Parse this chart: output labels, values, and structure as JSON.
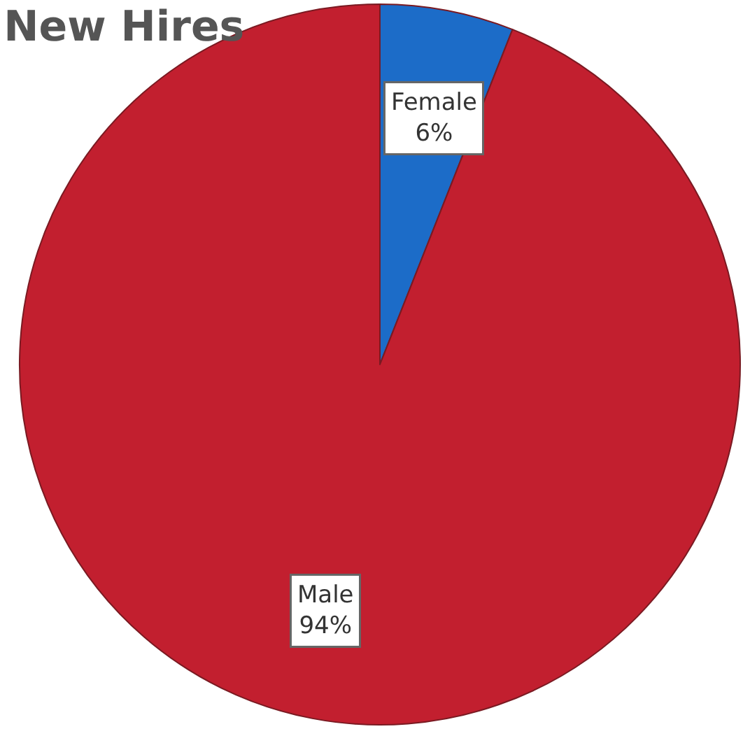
{
  "chart_data": {
    "type": "pie",
    "title": "New Hires",
    "categories": [
      "Female",
      "Male"
    ],
    "values": [
      6,
      94
    ],
    "colors": [
      "#1c6cc8",
      "#c21f2f"
    ],
    "value_labels": [
      "6%",
      "94%"
    ],
    "legend": false
  }
}
